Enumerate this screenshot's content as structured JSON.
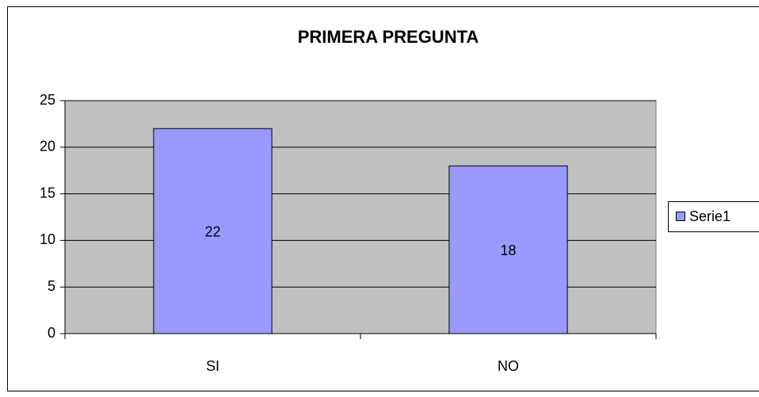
{
  "chart_data": {
    "type": "bar",
    "title": "PRIMERA PREGUNTA",
    "categories": [
      "SI",
      "NO"
    ],
    "series": [
      {
        "name": "Serie1",
        "color": "#9999ff",
        "values": [
          22,
          18
        ]
      }
    ],
    "ylim": [
      0,
      25
    ],
    "yticks": [
      0,
      5,
      10,
      15,
      20,
      25
    ],
    "grid": true,
    "legend": "right",
    "plot_background": "#c0c0c0"
  }
}
